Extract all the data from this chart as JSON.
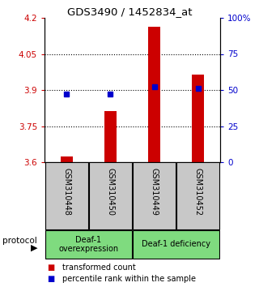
{
  "title": "GDS3490 / 1452834_at",
  "samples": [
    "GSM310448",
    "GSM310450",
    "GSM310449",
    "GSM310452"
  ],
  "red_bar_values": [
    3.622,
    3.812,
    4.162,
    3.965
  ],
  "percentile_values": [
    47,
    47,
    52,
    51
  ],
  "y_min": 3.6,
  "y_max": 4.2,
  "y_ticks_left": [
    3.6,
    3.75,
    3.9,
    4.05,
    4.2
  ],
  "y_ticks_left_labels": [
    "3.6",
    "3.75",
    "3.9",
    "4.05",
    "4.2"
  ],
  "y_ticks_right": [
    0,
    25,
    50,
    75,
    100
  ],
  "y_ticks_right_labels": [
    "0",
    "25",
    "50",
    "75",
    "100%"
  ],
  "bar_color": "#cc0000",
  "square_color": "#0000cc",
  "group1_label": "Deaf-1\noverexpression",
  "group2_label": "Deaf-1 deficiency",
  "group_bg_color": "#7FDB7F",
  "sample_bg_color": "#c8c8c8",
  "legend_red": "transformed count",
  "legend_blue": "percentile rank within the sample",
  "protocol_label": "protocol",
  "fig_width": 3.2,
  "fig_height": 3.54,
  "dpi": 100
}
